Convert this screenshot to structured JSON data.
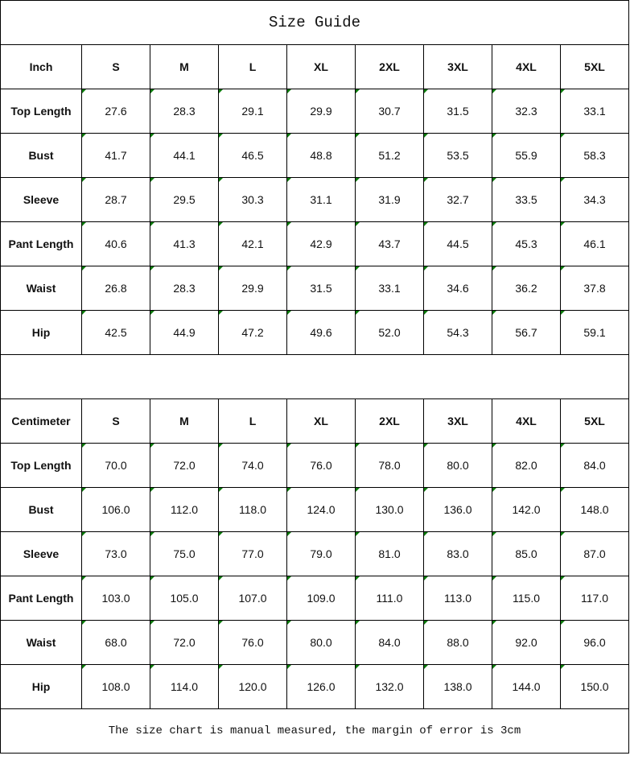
{
  "title": "Size Guide",
  "footer": "The size chart is manual measured, the margin of error is 3cm",
  "sizes": [
    "S",
    "M",
    "L",
    "XL",
    "2XL",
    "3XL",
    "4XL",
    "5XL"
  ],
  "tables": [
    {
      "unit": "Inch",
      "rows": [
        {
          "label": "Top Length",
          "values": [
            "27.6",
            "28.3",
            "29.1",
            "29.9",
            "30.7",
            "31.5",
            "32.3",
            "33.1"
          ]
        },
        {
          "label": "Bust",
          "values": [
            "41.7",
            "44.1",
            "46.5",
            "48.8",
            "51.2",
            "53.5",
            "55.9",
            "58.3"
          ]
        },
        {
          "label": "Sleeve",
          "values": [
            "28.7",
            "29.5",
            "30.3",
            "31.1",
            "31.9",
            "32.7",
            "33.5",
            "34.3"
          ]
        },
        {
          "label": "Pant Length",
          "values": [
            "40.6",
            "41.3",
            "42.1",
            "42.9",
            "43.7",
            "44.5",
            "45.3",
            "46.1"
          ]
        },
        {
          "label": "Waist",
          "values": [
            "26.8",
            "28.3",
            "29.9",
            "31.5",
            "33.1",
            "34.6",
            "36.2",
            "37.8"
          ]
        },
        {
          "label": "Hip",
          "values": [
            "42.5",
            "44.9",
            "47.2",
            "49.6",
            "52.0",
            "54.3",
            "56.7",
            "59.1"
          ]
        }
      ]
    },
    {
      "unit": "Centimeter",
      "rows": [
        {
          "label": "Top Length",
          "values": [
            "70.0",
            "72.0",
            "74.0",
            "76.0",
            "78.0",
            "80.0",
            "82.0",
            "84.0"
          ]
        },
        {
          "label": "Bust",
          "values": [
            "106.0",
            "112.0",
            "118.0",
            "124.0",
            "130.0",
            "136.0",
            "142.0",
            "148.0"
          ]
        },
        {
          "label": "Sleeve",
          "values": [
            "73.0",
            "75.0",
            "77.0",
            "79.0",
            "81.0",
            "83.0",
            "85.0",
            "87.0"
          ]
        },
        {
          "label": "Pant Length",
          "values": [
            "103.0",
            "105.0",
            "107.0",
            "109.0",
            "111.0",
            "113.0",
            "115.0",
            "117.0"
          ]
        },
        {
          "label": "Waist",
          "values": [
            "68.0",
            "72.0",
            "76.0",
            "80.0",
            "84.0",
            "88.0",
            "92.0",
            "96.0"
          ]
        },
        {
          "label": "Hip",
          "values": [
            "108.0",
            "114.0",
            "120.0",
            "126.0",
            "132.0",
            "138.0",
            "144.0",
            "150.0"
          ]
        }
      ]
    }
  ]
}
